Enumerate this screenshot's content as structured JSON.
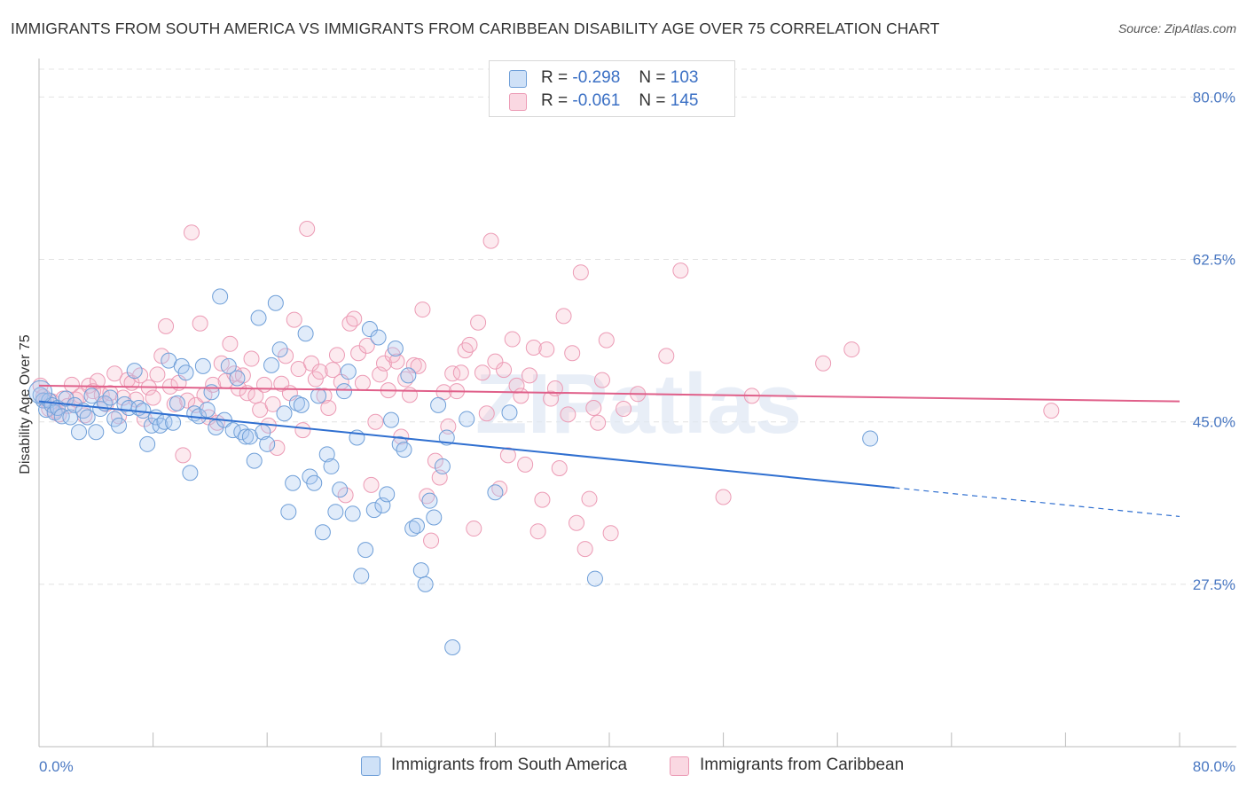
{
  "title": "IMMIGRANTS FROM SOUTH AMERICA VS IMMIGRANTS FROM CARIBBEAN DISABILITY AGE OVER 75 CORRELATION CHART",
  "source": "Source: ZipAtlas.com",
  "watermark": "ZIPatlas",
  "legend": {
    "rows": [
      {
        "r_label": "R =",
        "r_value": "-0.298",
        "n_label": "N =",
        "n_value": "103",
        "color": "#a8c8f0"
      },
      {
        "r_label": "R =",
        "r_value": "-0.061",
        "n_label": "N =",
        "n_value": "145",
        "color": "#f5b8cb"
      }
    ]
  },
  "bottom_legend": [
    {
      "label": "Immigrants from South America",
      "color": "#a8c8f0"
    },
    {
      "label": "Immigrants from Caribbean",
      "color": "#f5b8cb"
    }
  ],
  "colors": {
    "blue_stroke": "#6f9fd8",
    "blue_fill": "rgba(168,200,240,0.35)",
    "blue_line": "#2f6fd0",
    "pink_stroke": "#ec9bb5",
    "pink_fill": "rgba(245,184,203,0.3)",
    "pink_line": "#e0608a"
  },
  "chart_data": {
    "type": "scatter",
    "title": "IMMIGRANTS FROM SOUTH AMERICA VS IMMIGRANTS FROM CARIBBEAN DISABILITY AGE OVER 75 CORRELATION CHART",
    "xlabel": "",
    "ylabel": "Disability Age Over 75",
    "xlim": [
      0,
      80
    ],
    "ylim": [
      10,
      83
    ],
    "x_tick_labels": [
      "0.0%",
      "80.0%"
    ],
    "y_ticks": [
      27.5,
      45.0,
      62.5,
      80.0
    ],
    "y_tick_labels": [
      "27.5%",
      "45.0%",
      "62.5%",
      "80.0%"
    ],
    "grid": true,
    "legend_position": "top-center",
    "series": [
      {
        "name": "Immigrants from South America",
        "r": -0.298,
        "n": 103,
        "trend": {
          "x0": 0,
          "y0": 47.2,
          "x1": 60,
          "y1": 37.9,
          "dash_to_x": 80,
          "dash_to_y": 34.8
        },
        "points": [
          [
            0.1,
            47.9
          ],
          [
            0.3,
            47.3
          ],
          [
            0.5,
            46.3
          ],
          [
            0.7,
            47.3
          ],
          [
            0.9,
            46.8
          ],
          [
            1.1,
            46.0
          ],
          [
            1.3,
            46.5
          ],
          [
            1.6,
            45.6
          ],
          [
            1.9,
            47.5
          ],
          [
            2.2,
            45.5
          ],
          [
            2.5,
            46.8
          ],
          [
            2.8,
            43.9
          ],
          [
            3.1,
            46.2
          ],
          [
            3.4,
            45.5
          ],
          [
            3.7,
            47.8
          ],
          [
            4.0,
            43.9
          ],
          [
            4.3,
            46.4
          ],
          [
            4.6,
            47.0
          ],
          [
            5.0,
            47.6
          ],
          [
            5.3,
            45.3
          ],
          [
            5.6,
            44.6
          ],
          [
            6.0,
            46.9
          ],
          [
            6.3,
            46.5
          ],
          [
            6.7,
            50.5
          ],
          [
            7.0,
            46.5
          ],
          [
            7.3,
            46.2
          ],
          [
            7.6,
            42.6
          ],
          [
            7.9,
            44.6
          ],
          [
            8.2,
            45.5
          ],
          [
            8.5,
            44.6
          ],
          [
            8.8,
            45.0
          ],
          [
            9.1,
            51.6
          ],
          [
            9.4,
            44.9
          ],
          [
            9.7,
            47.0
          ],
          [
            10.0,
            51.0
          ],
          [
            10.3,
            50.3
          ],
          [
            10.6,
            39.5
          ],
          [
            10.9,
            45.9
          ],
          [
            11.2,
            45.6
          ],
          [
            11.5,
            51.0
          ],
          [
            11.8,
            46.3
          ],
          [
            12.1,
            48.2
          ],
          [
            12.4,
            44.4
          ],
          [
            12.7,
            58.5
          ],
          [
            13.0,
            45.2
          ],
          [
            13.3,
            51.0
          ],
          [
            13.6,
            44.1
          ],
          [
            13.9,
            49.7
          ],
          [
            14.2,
            43.9
          ],
          [
            14.5,
            43.4
          ],
          [
            14.8,
            43.4
          ],
          [
            15.1,
            40.8
          ],
          [
            15.4,
            56.2
          ],
          [
            15.7,
            43.9
          ],
          [
            16.0,
            42.6
          ],
          [
            16.3,
            51.1
          ],
          [
            16.6,
            57.8
          ],
          [
            16.9,
            52.8
          ],
          [
            17.2,
            45.9
          ],
          [
            17.5,
            35.3
          ],
          [
            17.8,
            38.4
          ],
          [
            18.1,
            47.0
          ],
          [
            18.4,
            46.8
          ],
          [
            18.7,
            54.5
          ],
          [
            19.0,
            39.1
          ],
          [
            19.3,
            38.4
          ],
          [
            19.6,
            47.8
          ],
          [
            19.9,
            33.1
          ],
          [
            20.2,
            41.5
          ],
          [
            20.5,
            40.2
          ],
          [
            20.8,
            35.3
          ],
          [
            21.1,
            37.7
          ],
          [
            21.4,
            48.3
          ],
          [
            21.7,
            50.4
          ],
          [
            22.0,
            35.1
          ],
          [
            22.3,
            43.3
          ],
          [
            22.6,
            28.4
          ],
          [
            22.9,
            31.2
          ],
          [
            23.2,
            55.0
          ],
          [
            23.5,
            35.5
          ],
          [
            23.8,
            54.1
          ],
          [
            24.1,
            36.0
          ],
          [
            24.4,
            37.2
          ],
          [
            24.7,
            45.2
          ],
          [
            25.0,
            52.9
          ],
          [
            25.3,
            42.6
          ],
          [
            25.6,
            42.0
          ],
          [
            25.9,
            50.0
          ],
          [
            26.2,
            33.5
          ],
          [
            26.5,
            33.8
          ],
          [
            26.8,
            29.0
          ],
          [
            27.1,
            27.5
          ],
          [
            27.4,
            36.5
          ],
          [
            27.7,
            34.7
          ],
          [
            28.0,
            46.8
          ],
          [
            28.3,
            40.2
          ],
          [
            28.6,
            43.3
          ],
          [
            29.0,
            20.7
          ],
          [
            30.0,
            45.3
          ],
          [
            32.0,
            37.4
          ],
          [
            33.0,
            46.0
          ],
          [
            39.0,
            28.1
          ],
          [
            58.3,
            43.2
          ]
        ]
      },
      {
        "name": "Immigrants from Caribbean",
        "r": -0.061,
        "n": 145,
        "trend": {
          "x0": 0,
          "y0": 48.9,
          "x1": 80,
          "y1": 47.2
        },
        "points": [
          [
            0.1,
            48.9
          ],
          [
            0.3,
            47.7
          ],
          [
            0.5,
            47.3
          ],
          [
            0.7,
            46.4
          ],
          [
            0.9,
            47.2
          ],
          [
            1.1,
            46.2
          ],
          [
            1.4,
            45.8
          ],
          [
            1.7,
            47.5
          ],
          [
            2.0,
            46.7
          ],
          [
            2.3,
            49.0
          ],
          [
            2.6,
            47.4
          ],
          [
            2.9,
            47.8
          ],
          [
            3.2,
            45.7
          ],
          [
            3.5,
            48.9
          ],
          [
            3.8,
            48.3
          ],
          [
            4.1,
            49.4
          ],
          [
            4.4,
            47.9
          ],
          [
            4.7,
            46.9
          ],
          [
            5.0,
            48.1
          ],
          [
            5.3,
            50.2
          ],
          [
            5.6,
            45.6
          ],
          [
            5.9,
            47.6
          ],
          [
            6.2,
            49.5
          ],
          [
            6.5,
            49.2
          ],
          [
            6.8,
            47.4
          ],
          [
            7.1,
            50.0
          ],
          [
            7.4,
            45.3
          ],
          [
            7.7,
            48.7
          ],
          [
            8.0,
            47.6
          ],
          [
            8.3,
            50.1
          ],
          [
            8.6,
            52.1
          ],
          [
            8.9,
            55.3
          ],
          [
            9.2,
            48.8
          ],
          [
            9.5,
            46.9
          ],
          [
            9.8,
            49.2
          ],
          [
            10.1,
            41.4
          ],
          [
            10.4,
            47.3
          ],
          [
            10.7,
            65.4
          ],
          [
            11.0,
            46.8
          ],
          [
            11.3,
            55.6
          ],
          [
            11.6,
            47.9
          ],
          [
            11.9,
            45.5
          ],
          [
            12.2,
            49.0
          ],
          [
            12.5,
            44.9
          ],
          [
            12.8,
            51.3
          ],
          [
            13.1,
            49.4
          ],
          [
            13.4,
            53.4
          ],
          [
            13.7,
            50.2
          ],
          [
            14.0,
            48.6
          ],
          [
            14.3,
            50.0
          ],
          [
            14.6,
            48.1
          ],
          [
            14.9,
            51.8
          ],
          [
            15.2,
            47.8
          ],
          [
            15.5,
            46.3
          ],
          [
            15.8,
            49.0
          ],
          [
            16.1,
            44.6
          ],
          [
            16.4,
            46.9
          ],
          [
            16.7,
            42.2
          ],
          [
            17.0,
            49.1
          ],
          [
            17.3,
            52.1
          ],
          [
            17.6,
            48.1
          ],
          [
            17.9,
            56.0
          ],
          [
            18.2,
            50.7
          ],
          [
            18.5,
            44.1
          ],
          [
            18.8,
            65.8
          ],
          [
            19.1,
            51.3
          ],
          [
            19.4,
            49.6
          ],
          [
            19.7,
            50.4
          ],
          [
            20.0,
            47.8
          ],
          [
            20.3,
            46.5
          ],
          [
            20.6,
            50.6
          ],
          [
            20.9,
            52.2
          ],
          [
            21.2,
            49.3
          ],
          [
            21.5,
            37.1
          ],
          [
            21.8,
            55.6
          ],
          [
            22.1,
            56.1
          ],
          [
            22.4,
            52.4
          ],
          [
            22.7,
            49.2
          ],
          [
            23.0,
            53.2
          ],
          [
            23.3,
            38.2
          ],
          [
            23.6,
            45.0
          ],
          [
            23.9,
            50.1
          ],
          [
            24.2,
            51.3
          ],
          [
            24.5,
            48.4
          ],
          [
            24.8,
            52.2
          ],
          [
            25.1,
            51.5
          ],
          [
            25.4,
            43.4
          ],
          [
            25.7,
            49.6
          ],
          [
            26.0,
            47.9
          ],
          [
            26.3,
            51.1
          ],
          [
            26.6,
            51.0
          ],
          [
            26.9,
            57.1
          ],
          [
            27.2,
            37.0
          ],
          [
            27.5,
            32.2
          ],
          [
            27.8,
            40.8
          ],
          [
            28.1,
            39.0
          ],
          [
            28.4,
            48.2
          ],
          [
            28.7,
            44.5
          ],
          [
            29.0,
            50.2
          ],
          [
            29.3,
            48.3
          ],
          [
            29.6,
            50.3
          ],
          [
            29.9,
            52.7
          ],
          [
            30.2,
            53.3
          ],
          [
            30.5,
            33.5
          ],
          [
            30.8,
            55.7
          ],
          [
            31.1,
            50.3
          ],
          [
            31.4,
            45.9
          ],
          [
            31.7,
            64.5
          ],
          [
            32.0,
            51.5
          ],
          [
            32.3,
            37.8
          ],
          [
            32.6,
            50.6
          ],
          [
            32.9,
            41.4
          ],
          [
            33.2,
            53.9
          ],
          [
            33.5,
            48.9
          ],
          [
            33.8,
            47.8
          ],
          [
            34.1,
            40.4
          ],
          [
            34.4,
            50.0
          ],
          [
            34.7,
            53.0
          ],
          [
            35.0,
            33.2
          ],
          [
            35.3,
            36.6
          ],
          [
            35.6,
            52.8
          ],
          [
            35.9,
            47.5
          ],
          [
            36.2,
            48.6
          ],
          [
            36.5,
            40.0
          ],
          [
            36.8,
            56.4
          ],
          [
            37.1,
            45.8
          ],
          [
            37.4,
            52.4
          ],
          [
            37.7,
            34.1
          ],
          [
            38.0,
            61.1
          ],
          [
            38.3,
            31.3
          ],
          [
            38.6,
            36.7
          ],
          [
            38.9,
            46.5
          ],
          [
            39.2,
            44.9
          ],
          [
            39.5,
            49.5
          ],
          [
            39.8,
            53.8
          ],
          [
            40.1,
            33.0
          ],
          [
            41.0,
            46.4
          ],
          [
            42.0,
            48.0
          ],
          [
            44.0,
            52.1
          ],
          [
            45.0,
            61.3
          ],
          [
            48.0,
            36.9
          ],
          [
            50.0,
            47.8
          ],
          [
            55.0,
            51.3
          ],
          [
            57.0,
            52.8
          ],
          [
            71.0,
            46.2
          ]
        ]
      }
    ]
  }
}
